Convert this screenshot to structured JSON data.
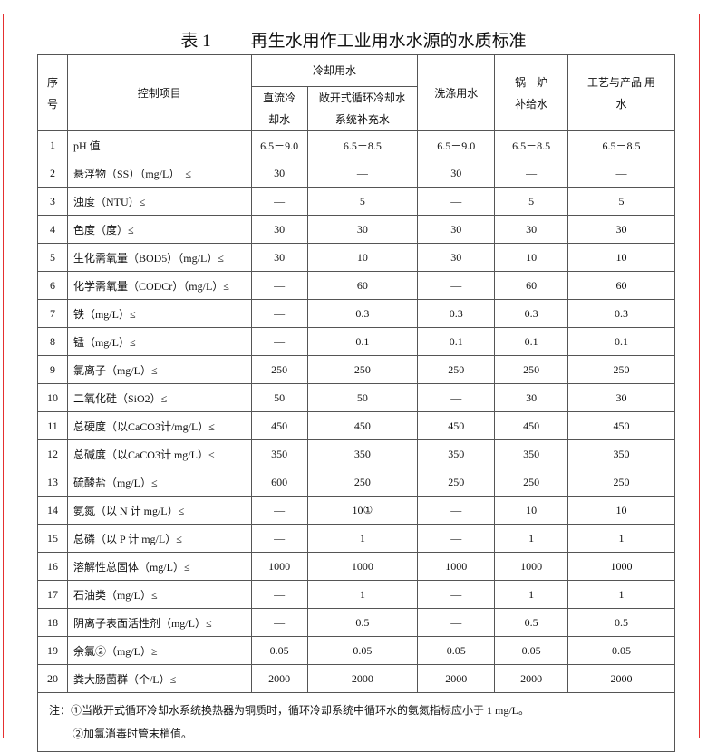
{
  "title": {
    "label": "表 1",
    "text": "再生水用作工业用水水源的水质标准"
  },
  "header": {
    "no": "序号",
    "item": "控制项目",
    "cooling": "冷却用水",
    "direct": "直流冷却水",
    "open": "敞开式循环冷却水系统补充水",
    "wash": "洗涤用水",
    "boiler": "锅　炉 补给水",
    "process": "工艺与产品 用　　水"
  },
  "rows": [
    {
      "no": "1",
      "item": "pH 值",
      "v": [
        "6.5－9.0",
        "6.5－8.5",
        "6.5－9.0",
        "6.5－8.5",
        "6.5－8.5"
      ]
    },
    {
      "no": "2",
      "item": "悬浮物（SS）（mg/L）　≤",
      "v": [
        "30",
        "—",
        "30",
        "—",
        "—"
      ]
    },
    {
      "no": "3",
      "item": "浊度（NTU）≤",
      "v": [
        "—",
        "5",
        "—",
        "5",
        "5"
      ]
    },
    {
      "no": "4",
      "item": "色度（度）≤",
      "v": [
        "30",
        "30",
        "30",
        "30",
        "30"
      ]
    },
    {
      "no": "5",
      "item": "生化需氧量（BOD5）（mg/L）≤",
      "v": [
        "30",
        "10",
        "30",
        "10",
        "10"
      ]
    },
    {
      "no": "6",
      "item": "化学需氧量（CODCr）（mg/L）≤",
      "v": [
        "—",
        "60",
        "—",
        "60",
        "60"
      ]
    },
    {
      "no": "7",
      "item": "铁（mg/L）≤",
      "v": [
        "—",
        "0.3",
        "0.3",
        "0.3",
        "0.3"
      ]
    },
    {
      "no": "8",
      "item": "锰（mg/L）≤",
      "v": [
        "—",
        "0.1",
        "0.1",
        "0.1",
        "0.1"
      ]
    },
    {
      "no": "9",
      "item": "氯离子（mg/L）≤",
      "v": [
        "250",
        "250",
        "250",
        "250",
        "250"
      ]
    },
    {
      "no": "10",
      "item": "二氧化硅（SiO2）≤",
      "v": [
        "50",
        "50",
        "—",
        "30",
        "30"
      ]
    },
    {
      "no": "11",
      "item": "总硬度（以CaCO3计/mg/L）≤",
      "v": [
        "450",
        "450",
        "450",
        "450",
        "450"
      ]
    },
    {
      "no": "12",
      "item": "总碱度（以CaCO3计  mg/L）≤",
      "v": [
        "350",
        "350",
        "350",
        "350",
        "350"
      ]
    },
    {
      "no": "13",
      "item": "硫酸盐（mg/L）≤",
      "v": [
        "600",
        "250",
        "250",
        "250",
        "250"
      ]
    },
    {
      "no": "14",
      "item": "氨氮（以 N 计  mg/L）≤",
      "v": [
        "—",
        "10①",
        "—",
        "10",
        "10"
      ]
    },
    {
      "no": "15",
      "item": "总磷（以 P 计  mg/L）≤",
      "v": [
        "—",
        "1",
        "—",
        "1",
        "1"
      ]
    },
    {
      "no": "16",
      "item": "溶解性总固体（mg/L）≤",
      "v": [
        "1000",
        "1000",
        "1000",
        "1000",
        "1000"
      ]
    },
    {
      "no": "17",
      "item": "石油类（mg/L）≤",
      "v": [
        "—",
        "1",
        "—",
        "1",
        "1"
      ]
    },
    {
      "no": "18",
      "item": "阴离子表面活性剂（mg/L）≤",
      "v": [
        "—",
        "0.5",
        "—",
        "0.5",
        "0.5"
      ]
    },
    {
      "no": "19",
      "item": "余氯②（mg/L）≥",
      "v": [
        "0.05",
        "0.05",
        "0.05",
        "0.05",
        "0.05"
      ]
    },
    {
      "no": "20",
      "item": "粪大肠菌群（个/L）≤",
      "v": [
        "2000",
        "2000",
        "2000",
        "2000",
        "2000"
      ]
    }
  ],
  "notes": [
    "注：①当敞开式循环冷却水系统换热器为铜质时，循环冷却系统中循环水的氨氮指标应小于 1 mg/L。",
    "②加氯消毒时管末梢值。"
  ]
}
